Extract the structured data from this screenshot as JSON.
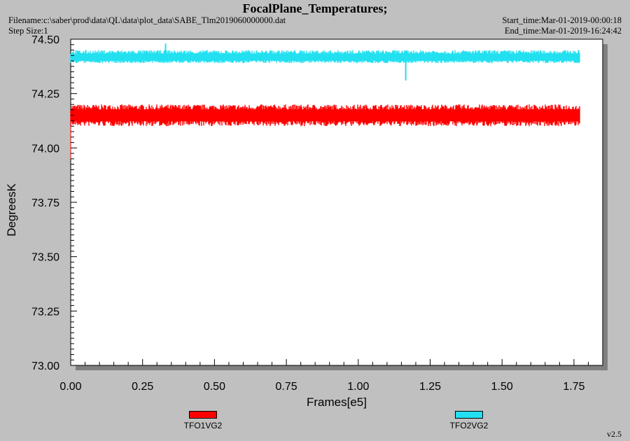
{
  "header": {
    "title": "FocalPlane_Temperatures;",
    "filename": "Filename:c:\\saber\\prod\\data\\QL\\data\\plot_data\\SABE_Tlm2019060000000.dat",
    "step_size": "Step Size:1",
    "start_time": "Start_time:Mar-01-2019-00:00:18",
    "end_time": "End_time:Mar-01-2019-16:24:42"
  },
  "version": "v2.5",
  "chart_data": {
    "type": "line",
    "xlabel": "Frames[e5]",
    "ylabel": "DegreesK",
    "xlim": [
      0,
      1.85
    ],
    "ylim": [
      73.0,
      74.5
    ],
    "x_ticks": [
      "0.00",
      "0.25",
      "0.50",
      "0.75",
      "1.00",
      "1.25",
      "1.50",
      "1.75"
    ],
    "y_ticks": [
      "73.00",
      "73.25",
      "73.50",
      "73.75",
      "74.00",
      "74.25",
      "74.50"
    ],
    "x_range": [
      0.0,
      1.77
    ],
    "series": [
      {
        "name": "TFO1VG2",
        "color": "#ff0000",
        "center": 74.15,
        "band": [
          74.1,
          74.2
        ]
      },
      {
        "name": "TFO2VG2",
        "color": "#22e0f0",
        "center": 74.415,
        "band": [
          74.39,
          74.45
        ],
        "spikes": [
          {
            "x": 0.33,
            "y": 74.48
          },
          {
            "x": 1.165,
            "y": 74.31
          }
        ]
      }
    ]
  }
}
